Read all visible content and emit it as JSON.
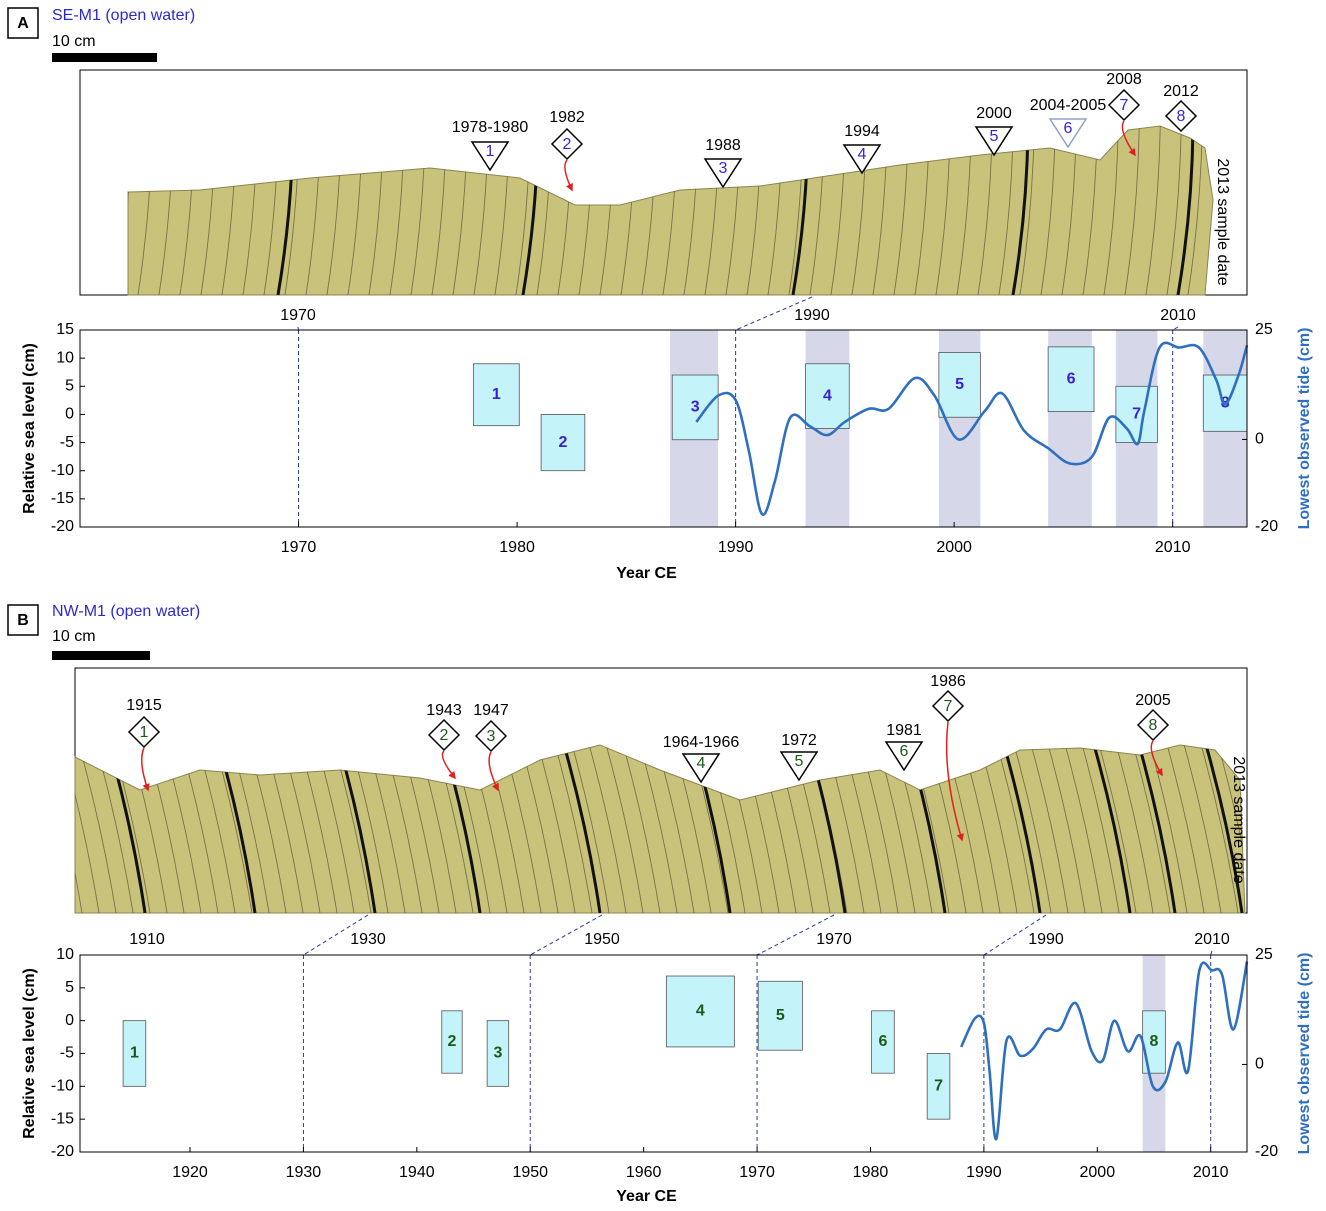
{
  "chart_data": [
    {
      "type": "combo",
      "panel": "A",
      "title": "SE-M1 (open water)",
      "scale_bar": "10 cm",
      "sample_date": "2013 sample date",
      "slab_years": [
        1970,
        1990,
        2010
      ],
      "annotations": [
        {
          "year": "1978-1980",
          "number": "1",
          "shape": "triangle"
        },
        {
          "year": "1982",
          "number": "2",
          "shape": "diamond"
        },
        {
          "year": "1988",
          "number": "3",
          "shape": "triangle"
        },
        {
          "year": "1994",
          "number": "4",
          "shape": "triangle"
        },
        {
          "year": "2000",
          "number": "5",
          "shape": "triangle"
        },
        {
          "year": "2004-2005",
          "number": "6",
          "shape": "triangle",
          "outline_color": "#8fa3c8"
        },
        {
          "year": "2008",
          "number": "7",
          "shape": "diamond"
        },
        {
          "year": "2012",
          "number": "8",
          "shape": "diamond"
        }
      ],
      "label_color": "#3a1fd6",
      "xlabel": "Year CE",
      "ylabel": "Relative sea level (cm)",
      "y2label": "Lowest observed tide (cm)",
      "xlim": [
        1960,
        2013.4
      ],
      "xticks": [
        1970,
        1980,
        1990,
        2000,
        2010
      ],
      "ylim": [
        -20,
        15
      ],
      "yticks": [
        -20,
        -15,
        -10,
        -5,
        0,
        5,
        10,
        15
      ],
      "y2lim": [
        -20,
        25
      ],
      "y2ticks": [
        -20,
        0,
        25
      ],
      "band_color": "#d6d8ea",
      "bands": [
        [
          1987,
          1989.2
        ],
        [
          1993.2,
          1995.2
        ],
        [
          1999.3,
          2001.2
        ],
        [
          2004.3,
          2006.3
        ],
        [
          2007.4,
          2009.3
        ],
        [
          2011.4,
          2013.4
        ]
      ],
      "box_color": "#c5f3fa",
      "boxes": [
        {
          "label": "1",
          "x": [
            1978,
            1980.1
          ],
          "y": [
            -2,
            9
          ]
        },
        {
          "label": "2",
          "x": [
            1981.1,
            1983.1
          ],
          "y": [
            -10,
            0
          ]
        },
        {
          "label": "3",
          "x": [
            1987.1,
            1989.2
          ],
          "y": [
            -4.5,
            7
          ]
        },
        {
          "label": "4",
          "x": [
            1993.2,
            1995.2
          ],
          "y": [
            -2.5,
            9
          ]
        },
        {
          "label": "5",
          "x": [
            1999.3,
            2001.2
          ],
          "y": [
            -0.5,
            11
          ]
        },
        {
          "label": "6",
          "x": [
            2004.3,
            2006.4
          ],
          "y": [
            0.5,
            12
          ]
        },
        {
          "label": "7",
          "x": [
            2007.4,
            2009.3
          ],
          "y": [
            -5,
            5
          ]
        },
        {
          "label": "8",
          "x": [
            2011.4,
            2013.4
          ],
          "y": [
            -3,
            7
          ]
        }
      ],
      "series": [
        {
          "color": "#2f6fc0",
          "axis": "y2",
          "x": [
            1988.2,
            1989.2,
            1990,
            1990.6,
            1991.2,
            1991.8,
            1992.5,
            1993.4,
            1994.2,
            1995,
            1996.1,
            1997,
            1998.2,
            1999.1,
            2000.2,
            2001.4,
            2002.2,
            2003.2,
            2004.3,
            2005.3,
            2006.3,
            2007.1,
            2007.9,
            2008.4,
            2008.7,
            2009.4,
            2010.3,
            2011.2,
            2012,
            2012.4,
            2013,
            2013.4
          ],
          "values": [
            4,
            10,
            9,
            -2.5,
            -17,
            -9.5,
            5,
            3,
            1,
            4,
            7,
            7,
            14,
            10,
            0,
            6.5,
            10.5,
            2,
            -2,
            -5.5,
            -4,
            5,
            2.5,
            -1,
            6.5,
            21,
            21,
            21,
            13.5,
            8,
            14.5,
            21.5
          ]
        }
      ]
    },
    {
      "type": "combo",
      "panel": "B",
      "title": "NW-M1 (open water)",
      "scale_bar": "10 cm",
      "sample_date": "2013 sample date",
      "slab_years": [
        1910,
        1930,
        1950,
        1970,
        1990,
        2010
      ],
      "annotations": [
        {
          "year": "1915",
          "number": "1",
          "shape": "diamond"
        },
        {
          "year": "1943",
          "number": "2",
          "shape": "diamond"
        },
        {
          "year": "1947",
          "number": "3",
          "shape": "diamond"
        },
        {
          "year": "1964-1966",
          "number": "4",
          "shape": "triangle"
        },
        {
          "year": "1972",
          "number": "5",
          "shape": "triangle"
        },
        {
          "year": "1981",
          "number": "6",
          "shape": "triangle"
        },
        {
          "year": "1986",
          "number": "7",
          "shape": "diamond"
        },
        {
          "year": "2005",
          "number": "8",
          "shape": "diamond"
        }
      ],
      "label_color": "#1c5a1c",
      "xlabel": "Year  CE",
      "ylabel": "Relative sea level (cm)",
      "y2label": "Lowest observed tide (cm)",
      "xlim": [
        1910.3,
        2013.2
      ],
      "xticks": [
        1920,
        1930,
        1940,
        1950,
        1960,
        1970,
        1980,
        1990,
        2000,
        2010
      ],
      "ylim": [
        -20,
        10
      ],
      "yticks": [
        -20,
        -15,
        -10,
        -5,
        0,
        5,
        10
      ],
      "y2lim": [
        -20,
        25
      ],
      "y2ticks": [
        -20,
        0,
        25
      ],
      "band_color": "#d6d8ea",
      "bands": [
        [
          2004,
          2006
        ]
      ],
      "box_color": "#c5f3fa",
      "boxes": [
        {
          "label": "1",
          "x": [
            1914.1,
            1916.1
          ],
          "y": [
            -10,
            0
          ]
        },
        {
          "label": "2",
          "x": [
            1942.2,
            1944
          ],
          "y": [
            -8,
            1.5
          ]
        },
        {
          "label": "3",
          "x": [
            1946.2,
            1948.1
          ],
          "y": [
            -10,
            0
          ]
        },
        {
          "label": "4",
          "x": [
            1962,
            1968
          ],
          "y": [
            -4,
            6.8
          ]
        },
        {
          "label": "5",
          "x": [
            1970.1,
            1974
          ],
          "y": [
            -4.5,
            6
          ]
        },
        {
          "label": "6",
          "x": [
            1980.1,
            1982.1
          ],
          "y": [
            -8,
            1.5
          ]
        },
        {
          "label": "7",
          "x": [
            1985,
            1987
          ],
          "y": [
            -15,
            -5
          ]
        },
        {
          "label": "8",
          "x": [
            2004,
            2006
          ],
          "y": [
            -8,
            1.5
          ]
        }
      ],
      "series": [
        {
          "color": "#2f6fc0",
          "axis": "y2",
          "x": [
            1988,
            1989.2,
            1990,
            1990.5,
            1991.1,
            1992,
            1993.2,
            1994.3,
            1995.5,
            1996.7,
            1998.1,
            1999.5,
            2000.5,
            2001.5,
            2002.7,
            2003.8,
            2004.9,
            2006,
            2007.1,
            2008,
            2009,
            2010.1,
            2011,
            2012,
            2013.2
          ],
          "values": [
            4,
            10.5,
            9.5,
            -1.5,
            -17,
            5.5,
            2,
            3.5,
            8,
            8,
            14,
            3,
            1,
            10,
            3,
            6.5,
            -5,
            -4,
            5,
            -1.5,
            21.5,
            21.5,
            20.5,
            8,
            23.5
          ]
        }
      ]
    }
  ]
}
